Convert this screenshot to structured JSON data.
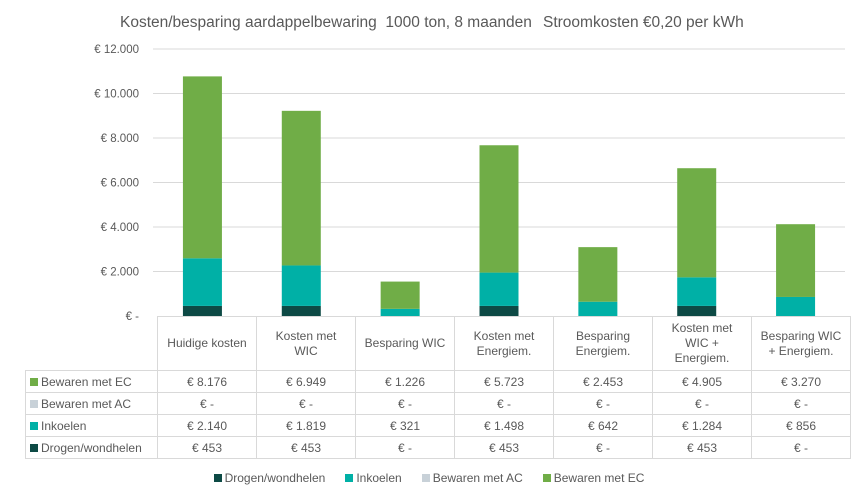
{
  "chart_data": {
    "type": "bar",
    "stacked": true,
    "title": "Kosten/besparing aardappelbewaring  1000 ton, 8 maanden",
    "subtitle": "Stroomkosten €0,20 per kWh",
    "xlabel": "",
    "ylabel": "",
    "ylim": [
      0,
      12000
    ],
    "yticks": [
      0,
      2000,
      4000,
      6000,
      8000,
      10000,
      12000
    ],
    "ytick_labels": [
      "€ -",
      "€ 2.000",
      "€ 4.000",
      "€ 6.000",
      "€ 8.000",
      "€ 10.000",
      "€ 12.000"
    ],
    "grid": true,
    "legend_position": "bottom",
    "categories": [
      [
        "Huidige kosten"
      ],
      [
        "Kosten met",
        "WIC"
      ],
      [
        "Besparing WIC"
      ],
      [
        "Kosten met",
        "Energiem."
      ],
      [
        "Besparing",
        "Energiem."
      ],
      [
        "Kosten met",
        "WIC +",
        "Energiem."
      ],
      [
        "Besparing WIC",
        "+ Energiem."
      ]
    ],
    "series": [
      {
        "name": "Drogen/wondhelen",
        "color": "#0d4a45",
        "values": [
          453,
          453,
          0,
          453,
          0,
          453,
          0
        ],
        "labels": [
          "€ 453",
          "€ 453",
          "€ -",
          "€ 453",
          "€ -",
          "€ 453",
          "€ -"
        ]
      },
      {
        "name": "Inkoelen",
        "color": "#00b0a6",
        "values": [
          2140,
          1819,
          321,
          1498,
          642,
          1284,
          856
        ],
        "labels": [
          "€ 2.140",
          "€ 1.819",
          "€ 321",
          "€ 1.498",
          "€ 642",
          "€ 1.284",
          "€ 856"
        ]
      },
      {
        "name": "Bewaren met AC",
        "color": "#c8d1d8",
        "values": [
          0,
          0,
          0,
          0,
          0,
          0,
          0
        ],
        "labels": [
          "€ -",
          "€ -",
          "€ -",
          "€ -",
          "€ -",
          "€ -",
          "€ -"
        ]
      },
      {
        "name": "Bewaren met EC",
        "color": "#70ad47",
        "values": [
          8176,
          6949,
          1226,
          5723,
          2453,
          4905,
          3270
        ],
        "labels": [
          "€ 8.176",
          "€ 6.949",
          "€ 1.226",
          "€ 5.723",
          "€ 2.453",
          "€ 4.905",
          "€ 3.270"
        ]
      }
    ],
    "table_row_order": [
      3,
      2,
      1,
      0
    ]
  }
}
